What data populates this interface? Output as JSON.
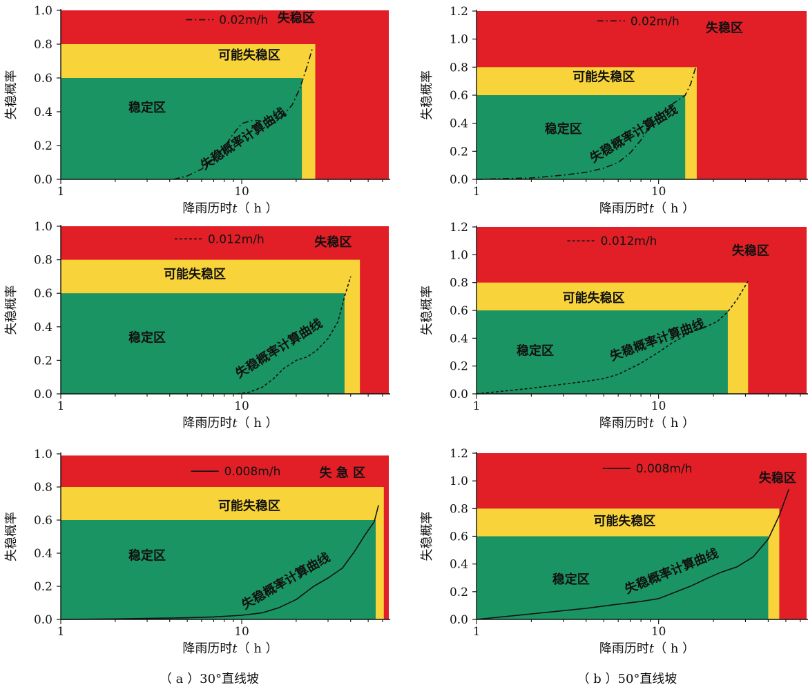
{
  "chart_data": [
    {
      "type": "line",
      "panel": "a",
      "xscale": "log",
      "xlim": [
        1,
        65
      ],
      "ylim": [
        0,
        1.0
      ],
      "yticks": [
        "0.0",
        "0.2",
        "0.4",
        "0.6",
        "0.8",
        "1.0"
      ],
      "xticks": [
        "1",
        "10"
      ],
      "xlabel": "降雨历时",
      "xlabel_var": "t",
      "xlabel_unit": "（ h ）",
      "ylabel": "失稳概率",
      "zones": {
        "stable_y": 0.6,
        "stable_x": 21.5,
        "possible_y": 0.8,
        "possible_x": 25.5,
        "unstable_y": 1.0,
        "unstable_x": 65
      },
      "zone_labels": {
        "stable": "稳定区",
        "possible": "可能失稳区",
        "unstable": "失稳区"
      },
      "curve_label": "失稳概率计算曲线",
      "series": [
        {
          "name": "0.02m/h",
          "style": "dashdot",
          "x": [
            4.2,
            5,
            6,
            7,
            8,
            9,
            10,
            11.5,
            13,
            15,
            17,
            19,
            21,
            23,
            24.5
          ],
          "y": [
            0,
            0.02,
            0.06,
            0.12,
            0.19,
            0.27,
            0.33,
            0.35,
            0.345,
            0.35,
            0.38,
            0.44,
            0.54,
            0.67,
            0.77
          ]
        }
      ]
    },
    {
      "type": "line",
      "panel": "b",
      "xscale": "log",
      "xlim": [
        1,
        65
      ],
      "ylim": [
        0,
        1.2
      ],
      "yticks": [
        "0.0",
        "0.2",
        "0.4",
        "0.6",
        "0.8",
        "1.0",
        "1.2"
      ],
      "xticks": [
        "1",
        "10"
      ],
      "xlabel": "降雨历时",
      "xlabel_var": "t",
      "xlabel_unit": "（ h ）",
      "ylabel": "失稳概率",
      "zones": {
        "stable_y": 0.6,
        "stable_x": 14,
        "possible_y": 0.8,
        "possible_x": 16.2,
        "unstable_y": 1.2,
        "unstable_x": 65
      },
      "zone_labels": {
        "stable": "稳定区",
        "possible": "可能失稳区",
        "unstable": "失稳区"
      },
      "curve_label": "失稳概率计算曲线",
      "series": [
        {
          "name": "0.02m/h",
          "style": "dashdot",
          "x": [
            1,
            2,
            3,
            4,
            5,
            6,
            7,
            8,
            9,
            10,
            11,
            12,
            13,
            14,
            15,
            16
          ],
          "y": [
            0,
            0.01,
            0.03,
            0.05,
            0.08,
            0.12,
            0.19,
            0.28,
            0.38,
            0.45,
            0.5,
            0.54,
            0.57,
            0.6,
            0.68,
            0.8
          ]
        }
      ]
    },
    {
      "type": "line",
      "panel": "a",
      "xscale": "log",
      "xlim": [
        1,
        65
      ],
      "ylim": [
        0,
        1.0
      ],
      "yticks": [
        "0.0",
        "0.2",
        "0.4",
        "0.6",
        "0.8",
        "1.0"
      ],
      "xticks": [
        "1",
        "10"
      ],
      "xlabel": "降雨历时",
      "xlabel_var": "t",
      "xlabel_unit": "（ h ）",
      "ylabel": "失稳概率",
      "zones": {
        "stable_y": 0.6,
        "stable_x": 37,
        "possible_y": 0.8,
        "possible_x": 45,
        "unstable_y": 1.0,
        "unstable_x": 65
      },
      "zone_labels": {
        "stable": "稳定区",
        "possible": "可能失稳区",
        "unstable": "失稳区"
      },
      "curve_label": "失稳概率计算曲线",
      "series": [
        {
          "name": "0.012m/h",
          "style": "dashed",
          "x": [
            9.5,
            11,
            13,
            15,
            17,
            20,
            23,
            26,
            30,
            34,
            37,
            40
          ],
          "y": [
            0,
            0.01,
            0.04,
            0.09,
            0.15,
            0.2,
            0.22,
            0.26,
            0.33,
            0.43,
            0.58,
            0.7
          ]
        }
      ]
    },
    {
      "type": "line",
      "panel": "b",
      "xscale": "log",
      "xlim": [
        1,
        65
      ],
      "ylim": [
        0,
        1.2
      ],
      "yticks": [
        "0.0",
        "0.2",
        "0.4",
        "0.6",
        "0.8",
        "1.0",
        "1.2"
      ],
      "xticks": [
        "1",
        "10"
      ],
      "xlabel": "降雨历时",
      "xlabel_var": "t",
      "xlabel_unit": "（ h ）",
      "ylabel": "失稳概率",
      "zones": {
        "stable_y": 0.6,
        "stable_x": 24,
        "possible_y": 0.8,
        "possible_x": 31,
        "unstable_y": 1.2,
        "unstable_x": 65
      },
      "zone_labels": {
        "stable": "稳定区",
        "possible": "可能失稳区",
        "unstable": "失稳区"
      },
      "curve_label": "失稳概率计算曲线",
      "series": [
        {
          "name": "0.012m/h",
          "style": "dashed",
          "x": [
            1,
            2,
            3,
            4,
            5,
            6,
            8,
            10,
            12,
            15,
            18,
            21,
            24,
            27,
            31
          ],
          "y": [
            0,
            0.04,
            0.07,
            0.09,
            0.11,
            0.14,
            0.22,
            0.3,
            0.37,
            0.44,
            0.48,
            0.52,
            0.59,
            0.68,
            0.81
          ]
        }
      ]
    },
    {
      "type": "line",
      "panel": "a",
      "xscale": "log",
      "xlim": [
        1,
        65
      ],
      "ylim": [
        0,
        1.0
      ],
      "yticks": [
        "0.0",
        "0.2",
        "0.4",
        "0.6",
        "0.8",
        "1.0"
      ],
      "xticks": [
        "1",
        "10"
      ],
      "xlabel": "降雨历时",
      "xlabel_var": "t",
      "xlabel_unit": "（ h ）",
      "ylabel": "失稳概率",
      "zones": {
        "stable_y": 0.6,
        "stable_x": 55,
        "possible_y": 0.8,
        "possible_x": 61,
        "unstable_y": 0.99,
        "unstable_x": 65
      },
      "zone_labels": {
        "stable": "稳定区",
        "possible": "可能失稳区",
        "unstable": "失 急 区"
      },
      "curve_label": "失稳概率计算曲线",
      "series": [
        {
          "name": "0.008m/h",
          "style": "solid",
          "x": [
            1,
            2,
            3,
            5,
            7,
            10,
            13,
            16,
            20,
            25,
            30,
            36,
            42,
            48,
            54,
            57
          ],
          "y": [
            0,
            0.003,
            0.006,
            0.01,
            0.015,
            0.025,
            0.04,
            0.07,
            0.12,
            0.2,
            0.25,
            0.31,
            0.41,
            0.51,
            0.59,
            0.69
          ]
        }
      ]
    },
    {
      "type": "line",
      "panel": "b",
      "xscale": "log",
      "xlim": [
        1,
        65
      ],
      "ylim": [
        0,
        1.2
      ],
      "yticks": [
        "0.0",
        "0.2",
        "0.4",
        "0.6",
        "0.8",
        "1.0",
        "1.2"
      ],
      "xticks": [
        "1",
        "10"
      ],
      "xlabel": "降雨历时",
      "xlabel_var": "t",
      "xlabel_unit": "（ h ）",
      "ylabel": "失稳概率",
      "zones": {
        "stable_y": 0.6,
        "stable_x": 40,
        "possible_y": 0.8,
        "possible_x": 46,
        "unstable_y": 1.2,
        "unstable_x": 65
      },
      "zone_labels": {
        "stable": "稳定区",
        "possible": "可能失稳区",
        "unstable": "失稳区"
      },
      "curve_label": "失稳概率计算曲线",
      "series": [
        {
          "name": "0.008m/h",
          "style": "solid",
          "x": [
            1,
            2,
            4,
            6,
            8,
            10,
            12,
            15,
            18,
            22,
            27,
            33,
            40,
            46,
            52
          ],
          "y": [
            0,
            0.04,
            0.08,
            0.11,
            0.13,
            0.15,
            0.19,
            0.24,
            0.29,
            0.34,
            0.38,
            0.45,
            0.58,
            0.75,
            0.94
          ]
        }
      ]
    }
  ],
  "captions": {
    "a": "（ a ）30°直线坡",
    "b": "（ b ）50°直线坡"
  }
}
